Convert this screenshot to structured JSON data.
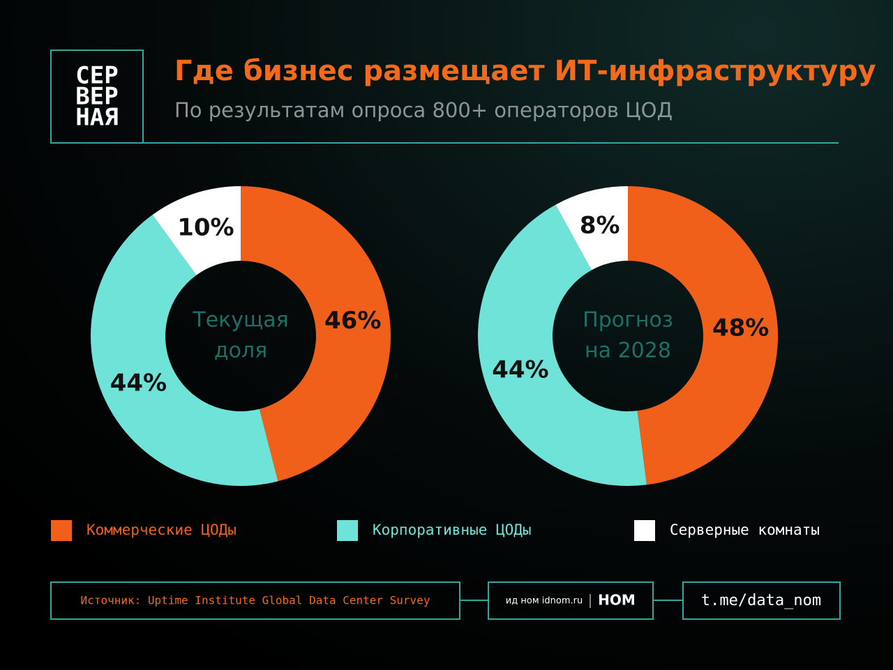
{
  "header": {
    "logo": [
      "СЕР",
      "ВЕР",
      "НАЯ"
    ],
    "title": "Где бизнес размещает ИТ-инфраструктуру",
    "subtitle": "По результатам опроса 800+ операторов ЦОД"
  },
  "chart_data": [
    {
      "type": "pie",
      "center_label": [
        "Текущая",
        "доля"
      ],
      "categories": [
        "Коммерческие ЦОДы",
        "Корпоративные ЦОДы",
        "Серверные комнаты"
      ],
      "values": [
        46,
        44,
        10
      ],
      "value_labels": [
        "46%",
        "44%",
        "10%"
      ],
      "colors": [
        "#f0601a",
        "#6fe3d8",
        "#ffffff"
      ]
    },
    {
      "type": "pie",
      "center_label": [
        "Прогноз",
        "на 2028"
      ],
      "categories": [
        "Коммерческие ЦОДы",
        "Корпоративные ЦОДы",
        "Серверные комнаты"
      ],
      "values": [
        48,
        44,
        8
      ],
      "value_labels": [
        "48%",
        "44%",
        "8%"
      ],
      "colors": [
        "#f0601a",
        "#6fe3d8",
        "#ffffff"
      ]
    }
  ],
  "footer": {
    "source": "Источник: Uptime Institute Global Data Center Survey",
    "publisher": "ид ном idnom.ru",
    "brand": "НОМ",
    "link": "t.me/data_nom"
  }
}
